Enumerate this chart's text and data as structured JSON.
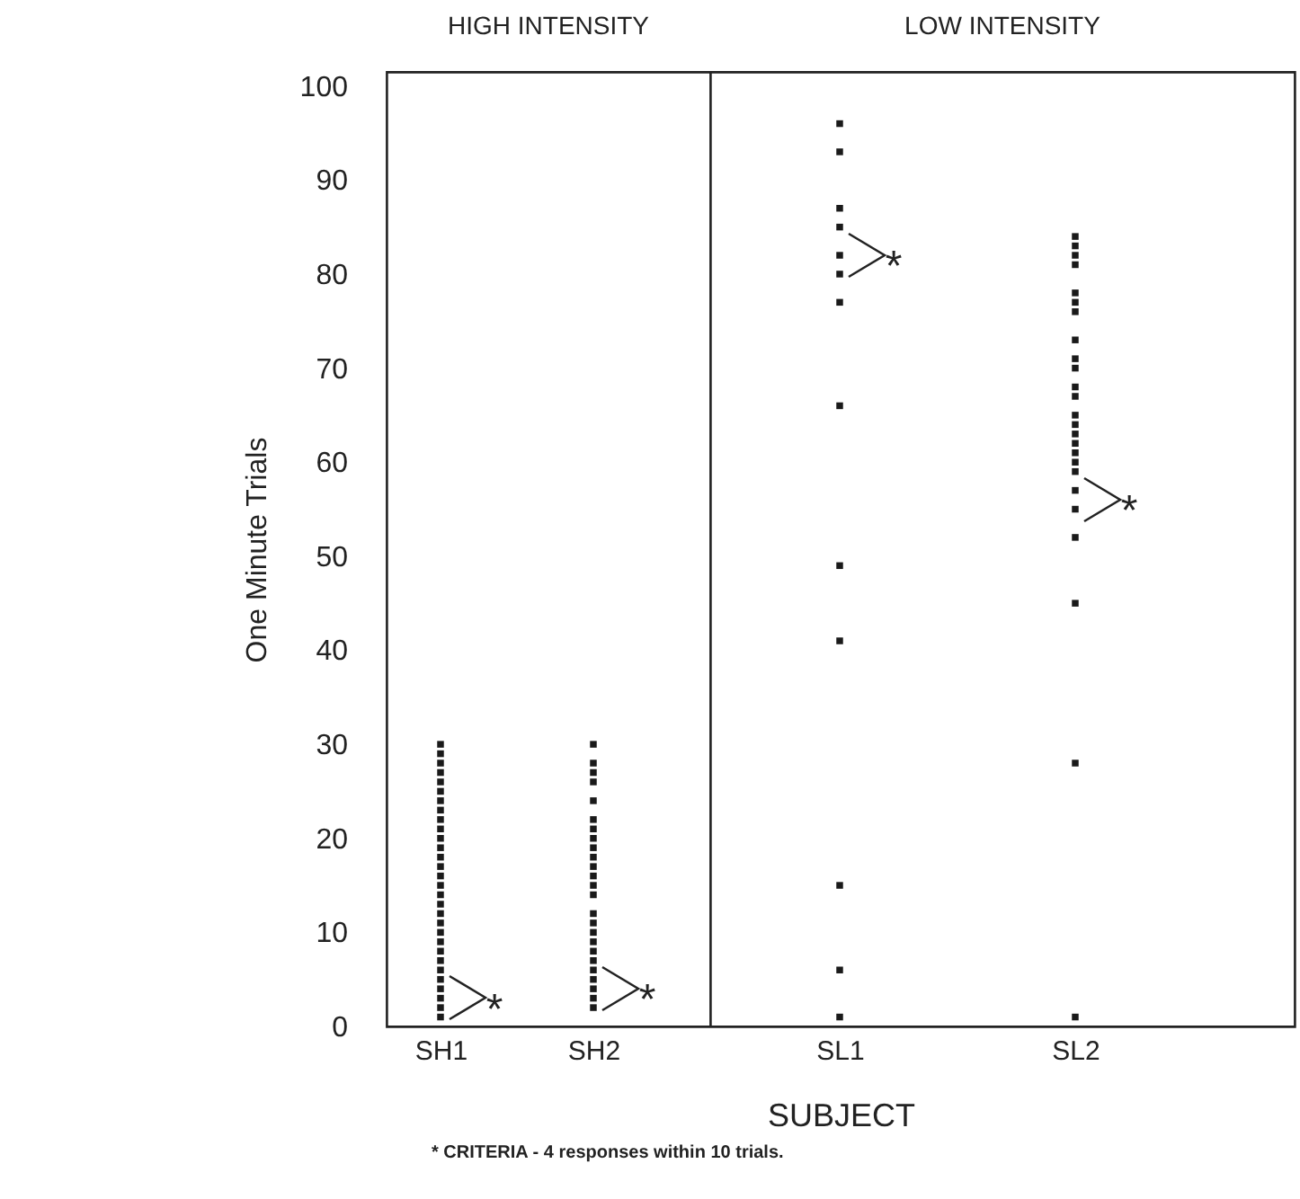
{
  "chart_data": [
    {
      "type": "scatter",
      "title": "HIGH INTENSITY",
      "ylabel": "One Minute Trials",
      "categories": [
        "SH1",
        "SH2"
      ],
      "marker": "square",
      "ylim": [
        0,
        101.5
      ],
      "yticks": [
        0,
        10,
        20,
        30,
        40,
        50,
        60,
        70,
        80,
        90,
        100
      ],
      "grid": false,
      "series": [
        {
          "color": "#1a1a1a",
          "x": [
            "SH1",
            "SH1",
            "SH1",
            "SH1",
            "SH1",
            "SH1",
            "SH1",
            "SH1",
            "SH1",
            "SH1",
            "SH1",
            "SH1",
            "SH1",
            "SH1",
            "SH1",
            "SH1",
            "SH1",
            "SH1",
            "SH1",
            "SH1",
            "SH1",
            "SH1",
            "SH1",
            "SH1",
            "SH1",
            "SH1",
            "SH1",
            "SH1",
            "SH1",
            "SH1"
          ],
          "values": [
            1,
            2,
            3,
            4,
            5,
            6,
            7,
            8,
            9,
            10,
            11,
            12,
            13,
            14,
            15,
            16,
            17,
            18,
            19,
            20,
            21,
            22,
            23,
            24,
            25,
            26,
            27,
            28,
            29,
            30
          ]
        },
        {
          "color": "#1a1a1a",
          "x": [
            "SH2",
            "SH2",
            "SH2",
            "SH2",
            "SH2",
            "SH2",
            "SH2",
            "SH2",
            "SH2",
            "SH2",
            "SH2",
            "SH2",
            "SH2",
            "SH2",
            "SH2",
            "SH2",
            "SH2",
            "SH2",
            "SH2",
            "SH2",
            "SH2",
            "SH2",
            "SH2",
            "SH2",
            "SH2"
          ],
          "values": [
            2,
            3,
            4,
            5,
            6,
            7,
            8,
            9,
            10,
            11,
            12,
            14,
            15,
            16,
            17,
            18,
            19,
            20,
            21,
            22,
            24,
            26,
            27,
            28,
            30
          ]
        }
      ],
      "annotations": [
        {
          "text": "*",
          "x": "SH1",
          "y": 3
        },
        {
          "text": "*",
          "x": "SH2",
          "y": 4
        },
        "* CRITERIA - 4 responses within 10 trials."
      ]
    },
    {
      "type": "scatter",
      "title": "LOW INTENSITY",
      "xlabel": "SUBJECT",
      "categories": [
        "SL1",
        "SL2"
      ],
      "marker": "square",
      "ylim": [
        0,
        101.5
      ],
      "yticks": [
        0,
        10,
        20,
        30,
        40,
        50,
        60,
        70,
        80,
        90,
        100
      ],
      "tick_labels": "x",
      "grid": false,
      "series": [
        {
          "color": "#1a1a1a",
          "x": [
            "SL1",
            "SL1",
            "SL1",
            "SL1",
            "SL1",
            "SL1",
            "SL1",
            "SL1",
            "SL1",
            "SL1",
            "SL1",
            "SL1",
            "SL1"
          ],
          "values": [
            96,
            93,
            87,
            85,
            82,
            80,
            77,
            66,
            49,
            41,
            15,
            6,
            1
          ]
        },
        {
          "color": "#1a1a1a",
          "x": [
            "SL2",
            "SL2",
            "SL2",
            "SL2",
            "SL2",
            "SL2",
            "SL2",
            "SL2",
            "SL2",
            "SL2",
            "SL2",
            "SL2",
            "SL2",
            "SL2",
            "SL2",
            "SL2",
            "SL2",
            "SL2",
            "SL2",
            "SL2",
            "SL2",
            "SL2",
            "SL2",
            "SL2",
            "SL2"
          ],
          "values": [
            84,
            83,
            82,
            81,
            78,
            77,
            76,
            73,
            71,
            70,
            68,
            67,
            65,
            64,
            63,
            62,
            61,
            60,
            59,
            57,
            55,
            52,
            45,
            28,
            1
          ]
        }
      ],
      "annotations": [
        {
          "text": "*",
          "x": "SL1",
          "y": 82
        },
        {
          "text": "*",
          "x": "SL2",
          "y": 56
        }
      ]
    }
  ]
}
